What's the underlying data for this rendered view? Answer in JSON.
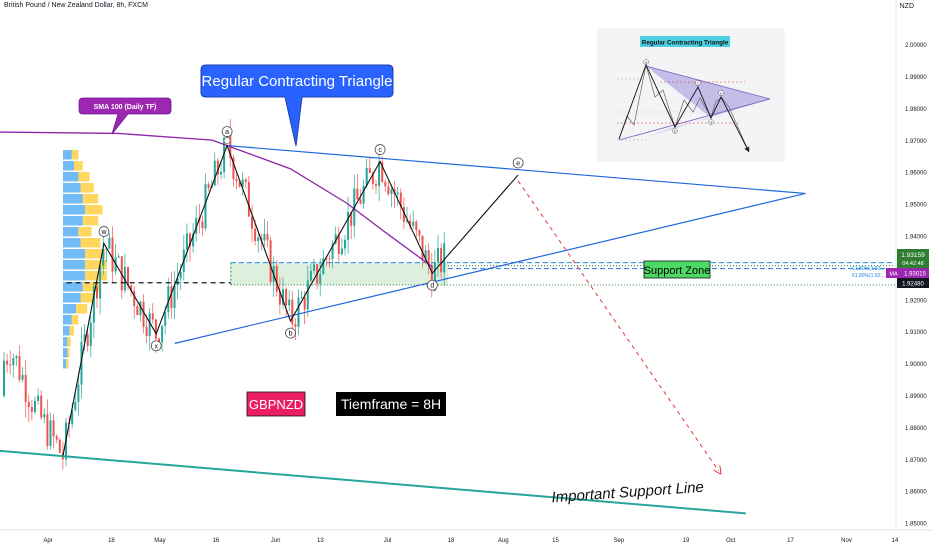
{
  "header": {
    "title": "British Pound / New Zealand Dollar, 8h, FXCM",
    "currency": "NZD"
  },
  "annotations": {
    "pattern_title": "Regular Contracting Triangle",
    "sma_label": "SMA 100 (Daily TF)",
    "support_zone": "Support Zone",
    "symbol": "GBPNZD",
    "timeframe": "Tiemframe = 8H",
    "support_line": "Important Support Line",
    "inset_title": "Regular Contracting Triangle",
    "wave_labels": [
      "a",
      "b",
      "c",
      "d",
      "e",
      "w",
      "x"
    ],
    "inset_wave_labels": [
      "a",
      "b",
      "c",
      "d",
      "e"
    ],
    "zone_line_labels": [
      "61.80%(1.92...",
      "61.80%(1.92..."
    ]
  },
  "price_tags": [
    {
      "name": "last-price",
      "value": "1.93159",
      "sub": "04:42:48",
      "color": "#2e7d32"
    },
    {
      "name": "ma",
      "label": "MA",
      "value": "1.93015",
      "color": "#9c27b0"
    },
    {
      "name": "zone-low",
      "value": "1.92480",
      "color": "#131722"
    }
  ],
  "chart_data": {
    "type": "line",
    "title": "British Pound / New Zealand Dollar, 8h, FXCM",
    "y_unit": "NZD",
    "ylim": [
      1.848,
      2.011
    ],
    "y_ticks": [
      "2.00000",
      "1.99000",
      "1.98000",
      "1.97000",
      "1.96000",
      "1.95000",
      "1.94000",
      "1.93000",
      "1.92000",
      "1.91000",
      "1.90000",
      "1.89000",
      "1.88000",
      "1.87000",
      "1.86000",
      "1.85000"
    ],
    "x_ticks": [
      "Apr",
      "18",
      "May",
      "16",
      "Jun",
      "13",
      "Jul",
      "18",
      "Aug",
      "15",
      "Sep",
      "19",
      "Oct",
      "17",
      "Nov",
      "14"
    ],
    "wave_path": [
      {
        "label": "",
        "date": "Apr 5",
        "price": 1.8712
      },
      {
        "label": "w",
        "date": "Apr 16",
        "price": 1.9378
      },
      {
        "label": "x",
        "date": "Apr 30",
        "price": 1.9095
      },
      {
        "label": "a",
        "date": "May 19",
        "price": 1.9685
      },
      {
        "label": "b",
        "date": "Jun 5",
        "price": 1.9135
      },
      {
        "label": "c",
        "date": "Jun 29",
        "price": 1.9635
      },
      {
        "label": "d",
        "date": "Jul 13",
        "price": 1.9285
      },
      {
        "label": "e",
        "date": "Aug 5",
        "price": 1.9593
      }
    ],
    "projection": {
      "from_date": "Aug 5",
      "from_price": 1.9593,
      "to_date": "Oct 1",
      "to_price": 1.8665
    },
    "triangle_upper": {
      "from_date": "May 19",
      "from_price": 1.9685,
      "to_date": "Oct 21",
      "to_price": 1.9535
    },
    "triangle_lower": {
      "from_date": "May 5",
      "from_price": 1.9065,
      "to_date": "Oct 21",
      "to_price": 1.9535
    },
    "support_zone": {
      "from_date": "May 20",
      "to_date": "Oct 10",
      "top": 1.9318,
      "bottom": 1.9248
    },
    "support_line": {
      "from_date": "Mar 15",
      "from_price": 1.8732,
      "to_date": "Oct 5",
      "to_price": 1.8532
    },
    "sma_100": [
      {
        "date": "Mar 15",
        "price": 1.9728
      },
      {
        "date": "Apr 20",
        "price": 1.9723
      },
      {
        "date": "May 15",
        "price": 1.9702
      },
      {
        "date": "Jun 5",
        "price": 1.9612
      },
      {
        "date": "Jun 20",
        "price": 1.9505
      },
      {
        "date": "Jul 1",
        "price": 1.9408
      },
      {
        "date": "Jul 13",
        "price": 1.9305
      }
    ],
    "dashed_level": {
      "from_date": "Apr 6",
      "to_date": "May 20",
      "price": 1.9255
    }
  }
}
